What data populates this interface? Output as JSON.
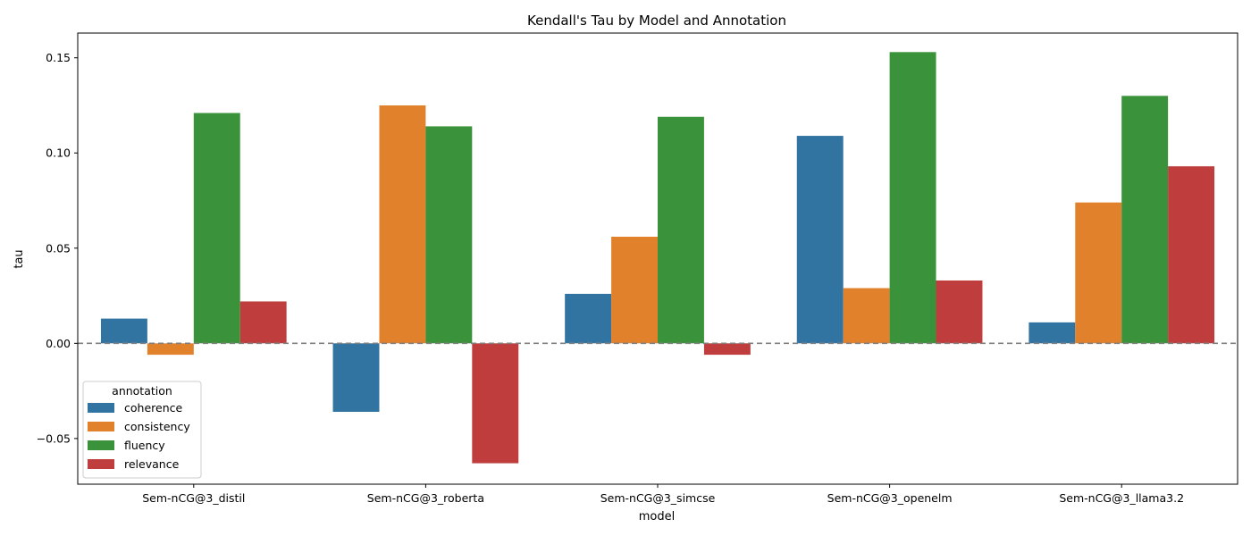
{
  "chart_data": {
    "type": "bar",
    "title": "Kendall's Tau by Model and Annotation",
    "xlabel": "model",
    "ylabel": "tau",
    "categories": [
      "Sem-nCG@3_distil",
      "Sem-nCG@3_roberta",
      "Sem-nCG@3_simcse",
      "Sem-nCG@3_openelm",
      "Sem-nCG@3_llama3.2"
    ],
    "series": [
      {
        "name": "coherence",
        "color": "#3274a1",
        "values": [
          0.013,
          -0.036,
          0.026,
          0.109,
          0.011
        ]
      },
      {
        "name": "consistency",
        "color": "#e1812c",
        "values": [
          -0.006,
          0.125,
          0.056,
          0.029,
          0.074
        ]
      },
      {
        "name": "fluency",
        "color": "#3a923a",
        "values": [
          0.121,
          0.114,
          0.119,
          0.153,
          0.13
        ]
      },
      {
        "name": "relevance",
        "color": "#c03d3e",
        "values": [
          0.022,
          -0.063,
          -0.006,
          0.033,
          0.093
        ]
      }
    ],
    "ylim": [
      -0.074,
      0.163
    ],
    "yticks": [
      -0.05,
      0.0,
      0.05,
      0.1,
      0.15
    ],
    "ytick_labels": [
      "−0.05",
      "0.00",
      "0.05",
      "0.10",
      "0.15"
    ],
    "reference_line": {
      "y": 0,
      "style": "dashed",
      "color": "#808080"
    },
    "legend": {
      "title": "annotation",
      "placement": "lower-left"
    },
    "grid": false
  }
}
